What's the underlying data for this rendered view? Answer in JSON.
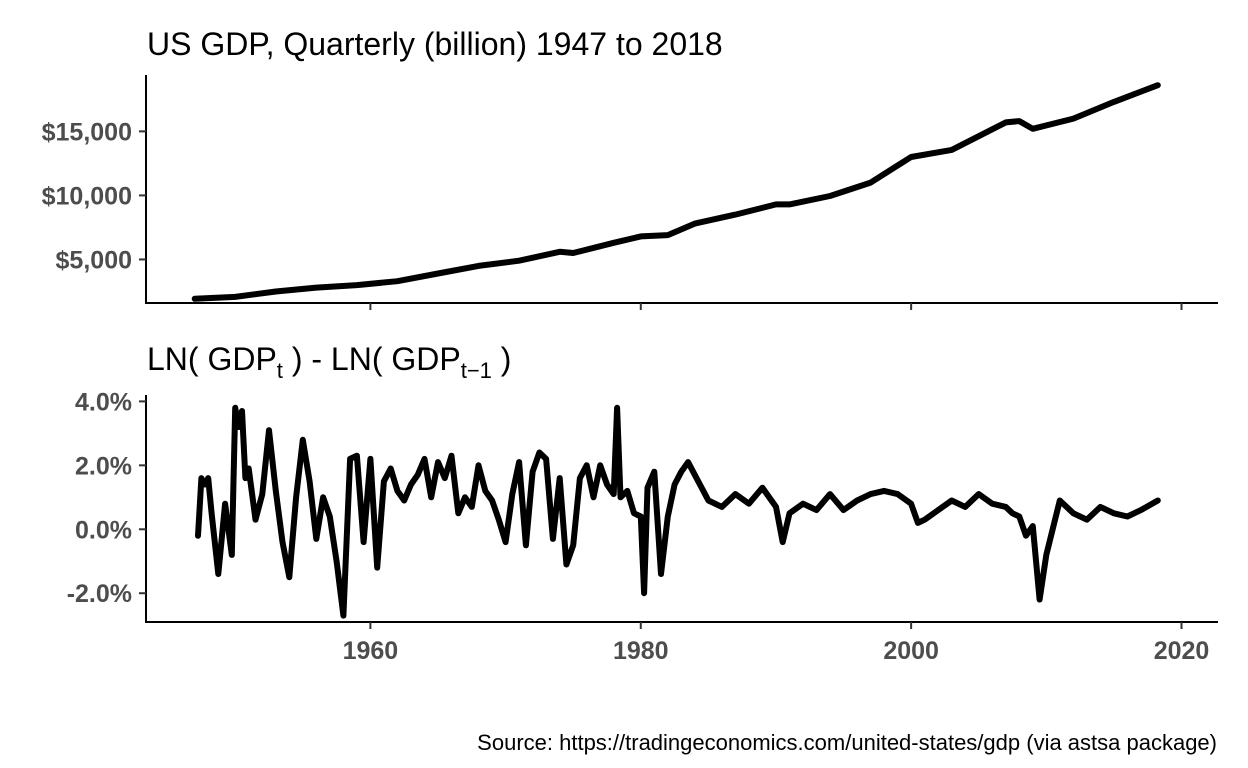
{
  "chart_data": [
    {
      "type": "line",
      "title": "US GDP, Quarterly (billion) 1947 to 2018",
      "xlabel": "",
      "ylabel": "",
      "xlim": [
        1943.4,
        2022.7
      ],
      "ylim": [
        1600,
        19400
      ],
      "yticks": [
        {
          "value": 5000,
          "label": "$5,000"
        },
        {
          "value": 10000,
          "label": "$10,000"
        },
        {
          "value": 15000,
          "label": "$15,000"
        }
      ],
      "series": [
        {
          "x": [
            1947,
            1950,
            1953,
            1956,
            1959,
            1962,
            1965,
            1968,
            1971,
            1974,
            1975,
            1978,
            1980,
            1982,
            1984,
            1987,
            1990,
            1991,
            1994,
            1997,
            2000,
            2003,
            2007,
            2008,
            2009,
            2012,
            2015,
            2018.25
          ],
          "y": [
            1930,
            2080,
            2500,
            2800,
            3000,
            3300,
            3900,
            4500,
            4900,
            5600,
            5500,
            6300,
            6800,
            6900,
            7800,
            8500,
            9300,
            9300,
            9950,
            11000,
            13000,
            13550,
            15700,
            15800,
            15200,
            16000,
            17300,
            18600
          ]
        }
      ]
    },
    {
      "type": "line",
      "title": "LN( GDP",
      "title_sub1": "t",
      "title_mid": " ) - LN( GDP",
      "title_sub2": "t−1",
      "title_end": " )",
      "xlabel": "",
      "ylabel": "",
      "xlim": [
        1943.4,
        2022.7
      ],
      "ylim": [
        -0.029,
        0.042
      ],
      "xticks": [
        {
          "value": 1960,
          "label": "1960"
        },
        {
          "value": 1980,
          "label": "1980"
        },
        {
          "value": 2000,
          "label": "2000"
        },
        {
          "value": 2020,
          "label": "2020"
        }
      ],
      "yticks": [
        {
          "value": -0.02,
          "label": "-2.0%"
        },
        {
          "value": 0.0,
          "label": "0.0%"
        },
        {
          "value": 0.02,
          "label": "2.0%"
        },
        {
          "value": 0.04,
          "label": "4.0%"
        }
      ],
      "series": [
        {
          "x": [
            1947.25,
            1947.5,
            1947.75,
            1948,
            1948.25,
            1948.75,
            1949.25,
            1949.75,
            1950,
            1950.25,
            1950.5,
            1950.75,
            1951,
            1951.5,
            1952,
            1952.5,
            1953,
            1953.5,
            1954,
            1954.5,
            1955,
            1955.5,
            1956,
            1956.5,
            1957,
            1957.5,
            1958,
            1958.5,
            1959,
            1959.5,
            1960,
            1960.5,
            1961,
            1961.5,
            1962,
            1962.5,
            1963,
            1963.5,
            1964,
            1964.5,
            1965,
            1965.5,
            1966,
            1966.5,
            1967,
            1967.5,
            1968,
            1968.5,
            1969,
            1969.5,
            1970,
            1970.5,
            1971,
            1971.5,
            1972,
            1972.5,
            1973,
            1973.5,
            1974,
            1974.5,
            1975,
            1975.5,
            1976,
            1976.5,
            1977,
            1977.5,
            1978,
            1978.25,
            1978.5,
            1979,
            1979.5,
            1980,
            1980.25,
            1980.5,
            1981,
            1981.5,
            1982,
            1982.5,
            1983,
            1983.5,
            1984,
            1985,
            1986,
            1987,
            1988,
            1989,
            1990,
            1990.5,
            1991,
            1992,
            1993,
            1994,
            1995,
            1996,
            1997,
            1998,
            1999,
            2000,
            2000.5,
            2001,
            2002,
            2003,
            2004,
            2005,
            2006,
            2007,
            2007.5,
            2008,
            2008.5,
            2009,
            2009.5,
            2010,
            2011,
            2012,
            2013,
            2014,
            2015,
            2016,
            2017,
            2018.25
          ],
          "y": [
            -0.002,
            0.016,
            0.014,
            0.016,
            0.005,
            -0.014,
            0.008,
            -0.008,
            0.038,
            0.032,
            0.037,
            0.016,
            0.019,
            0.003,
            0.011,
            0.031,
            0.012,
            -0.004,
            -0.015,
            0.01,
            0.028,
            0.015,
            -0.003,
            0.01,
            0.004,
            -0.01,
            -0.027,
            0.022,
            0.023,
            -0.004,
            0.022,
            -0.012,
            0.015,
            0.019,
            0.012,
            0.009,
            0.014,
            0.017,
            0.022,
            0.01,
            0.021,
            0.016,
            0.023,
            0.005,
            0.01,
            0.007,
            0.02,
            0.012,
            0.009,
            0.003,
            -0.004,
            0.011,
            0.021,
            -0.005,
            0.018,
            0.024,
            0.022,
            -0.003,
            0.016,
            -0.011,
            -0.005,
            0.016,
            0.02,
            0.01,
            0.02,
            0.014,
            0.011,
            0.038,
            0.01,
            0.012,
            0.005,
            0.004,
            -0.02,
            0.013,
            0.018,
            -0.014,
            0.004,
            0.014,
            0.018,
            0.021,
            0.017,
            0.009,
            0.007,
            0.011,
            0.008,
            0.013,
            0.007,
            -0.004,
            0.005,
            0.008,
            0.006,
            0.011,
            0.006,
            0.009,
            0.011,
            0.012,
            0.011,
            0.008,
            0.002,
            0.003,
            0.006,
            0.009,
            0.007,
            0.011,
            0.008,
            0.007,
            0.005,
            0.004,
            -0.002,
            0.001,
            -0.022,
            -0.008,
            0.009,
            0.005,
            0.003,
            0.007,
            0.005,
            0.004,
            0.006,
            0.009
          ]
        }
      ]
    }
  ],
  "caption": "Source: https://tradingeconomics.com/united-states/gdp (via astsa package)"
}
